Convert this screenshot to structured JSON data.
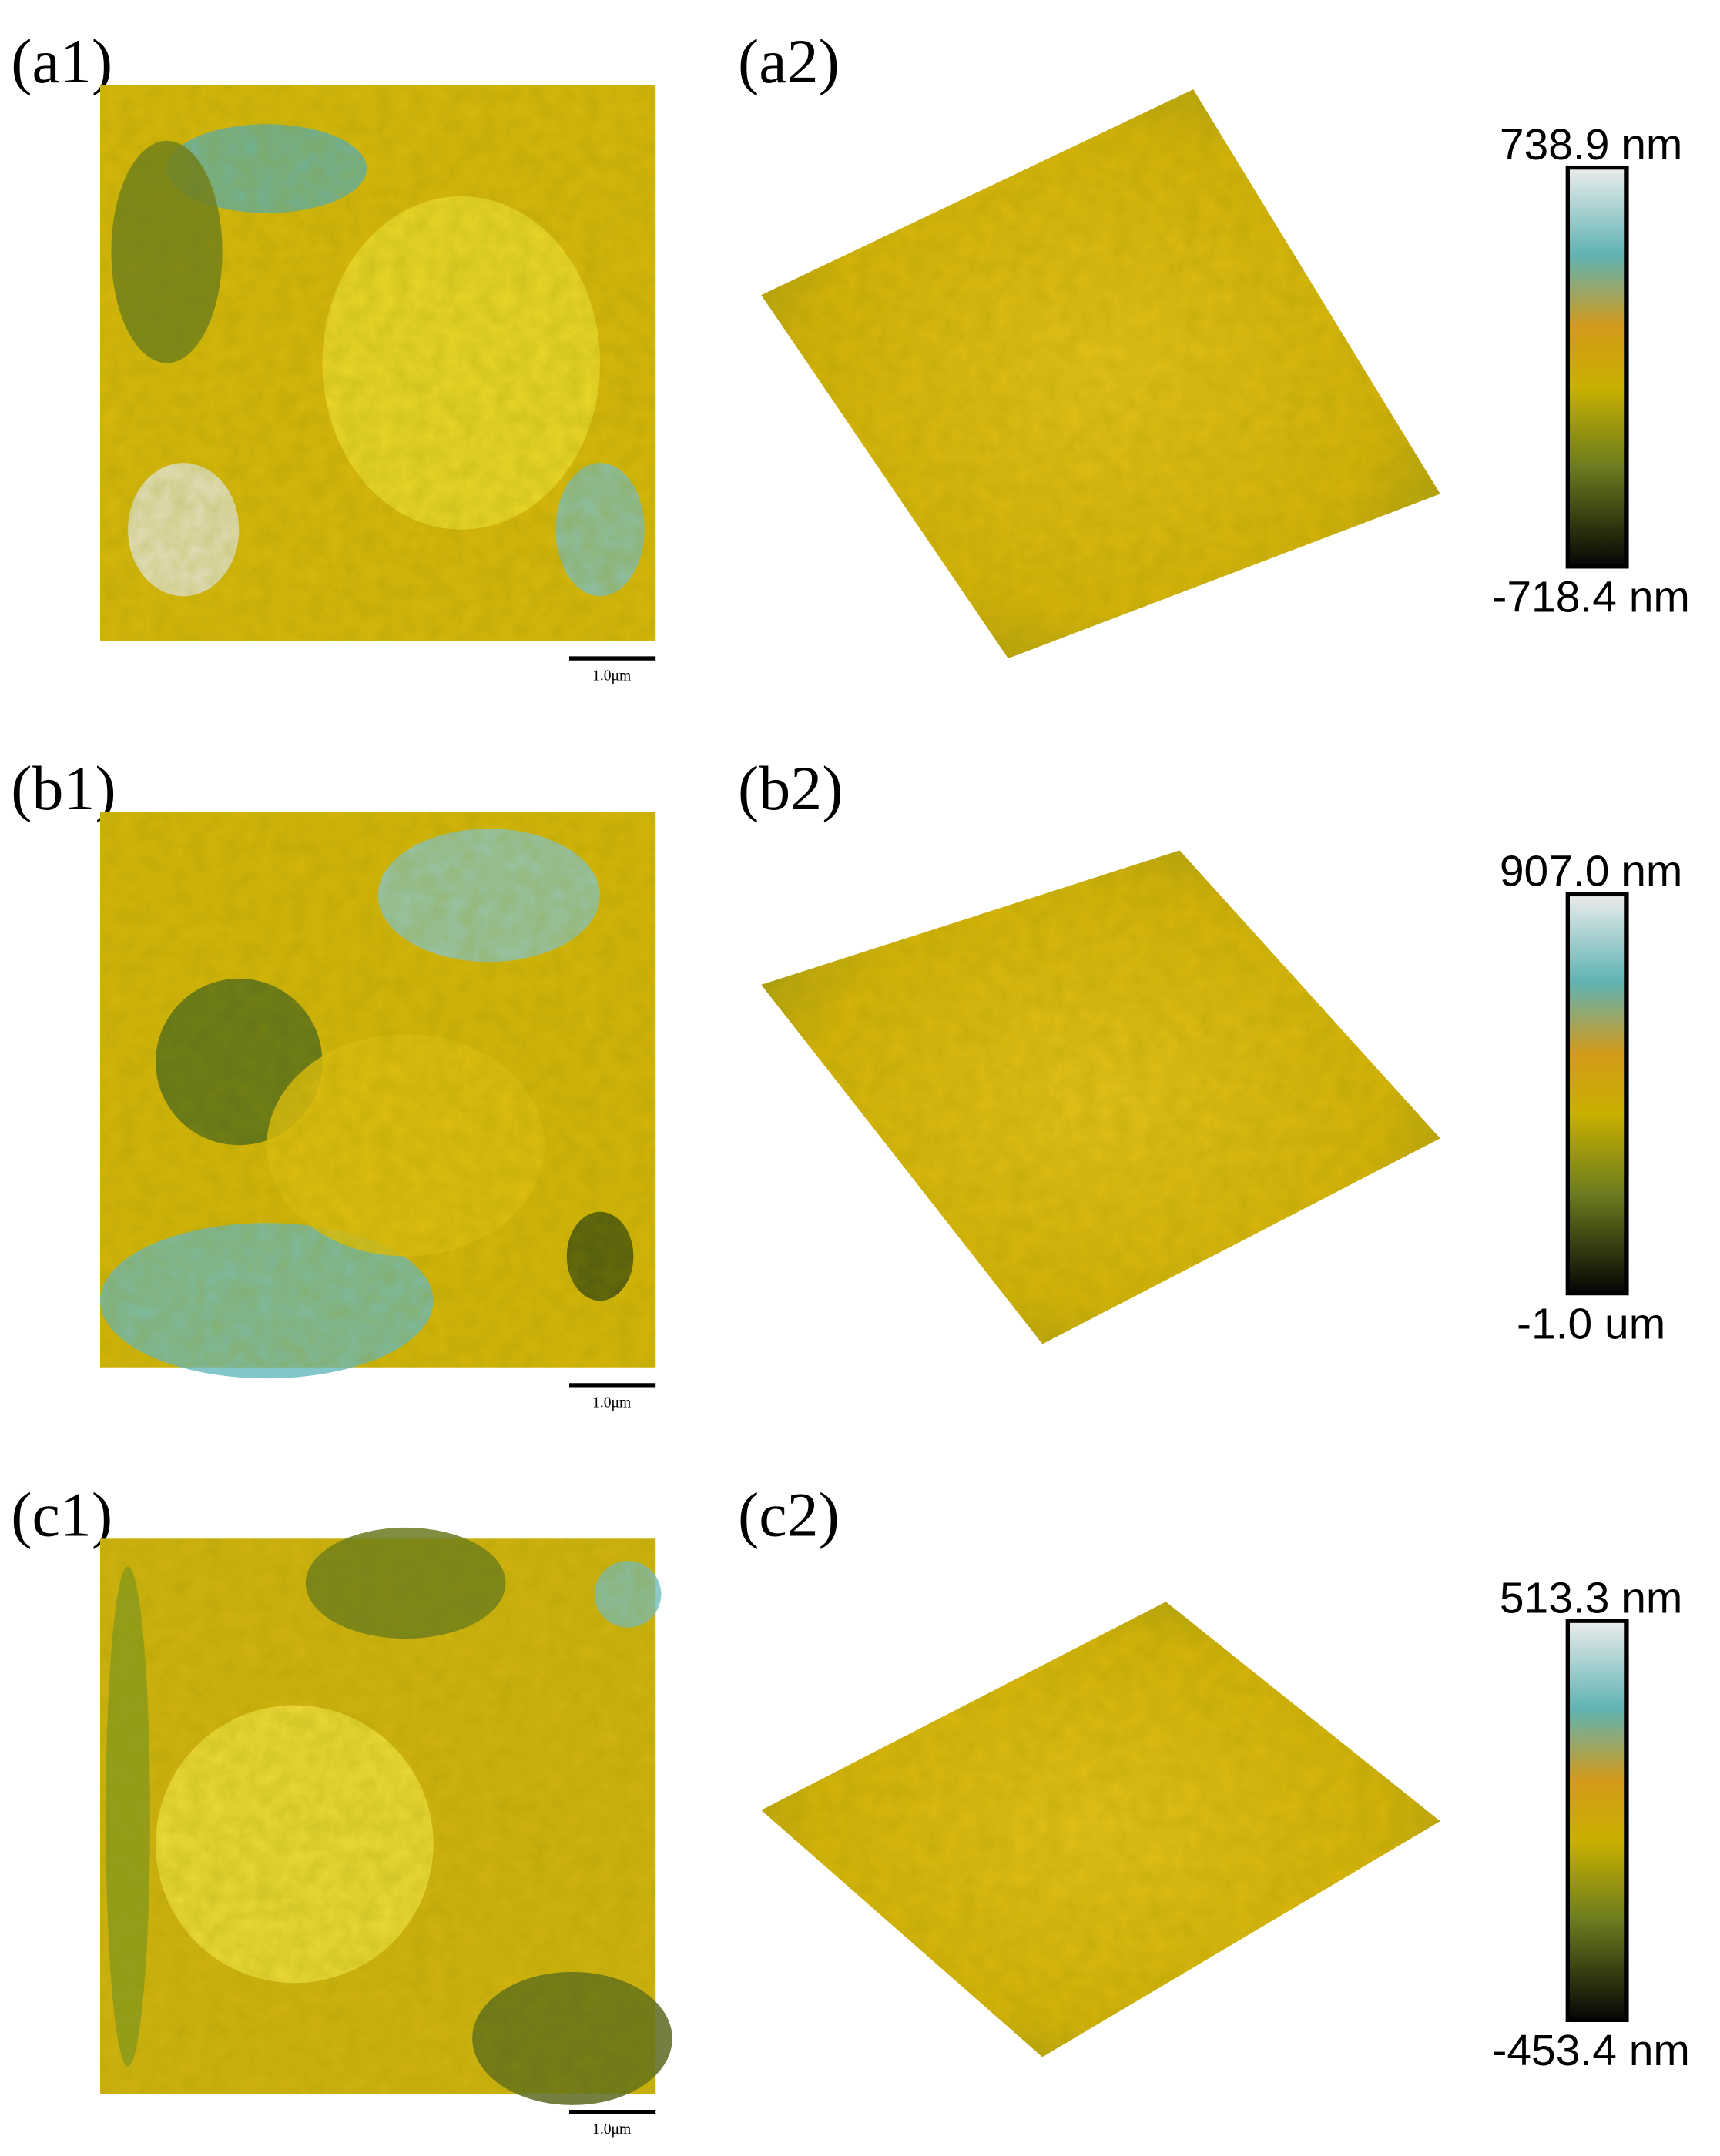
{
  "rows": [
    {
      "top_view": {
        "label": "(a1)",
        "scale_bar": "1.0μm"
      },
      "view_3d": {
        "label": "(a2)"
      },
      "colorbar": {
        "max": "738.9 nm",
        "min": "-718.4 nm"
      }
    },
    {
      "top_view": {
        "label": "(b1)",
        "scale_bar": "1.0μm"
      },
      "view_3d": {
        "label": "(b2)"
      },
      "colorbar": {
        "max": "907.0 nm",
        "min": "-1.0 um"
      }
    },
    {
      "top_view": {
        "label": "(c1)",
        "scale_bar": "1.0μm"
      },
      "view_3d": {
        "label": "(c2)"
      },
      "colorbar": {
        "max": "513.3 nm",
        "min": "-453.4 nm"
      }
    }
  ]
}
